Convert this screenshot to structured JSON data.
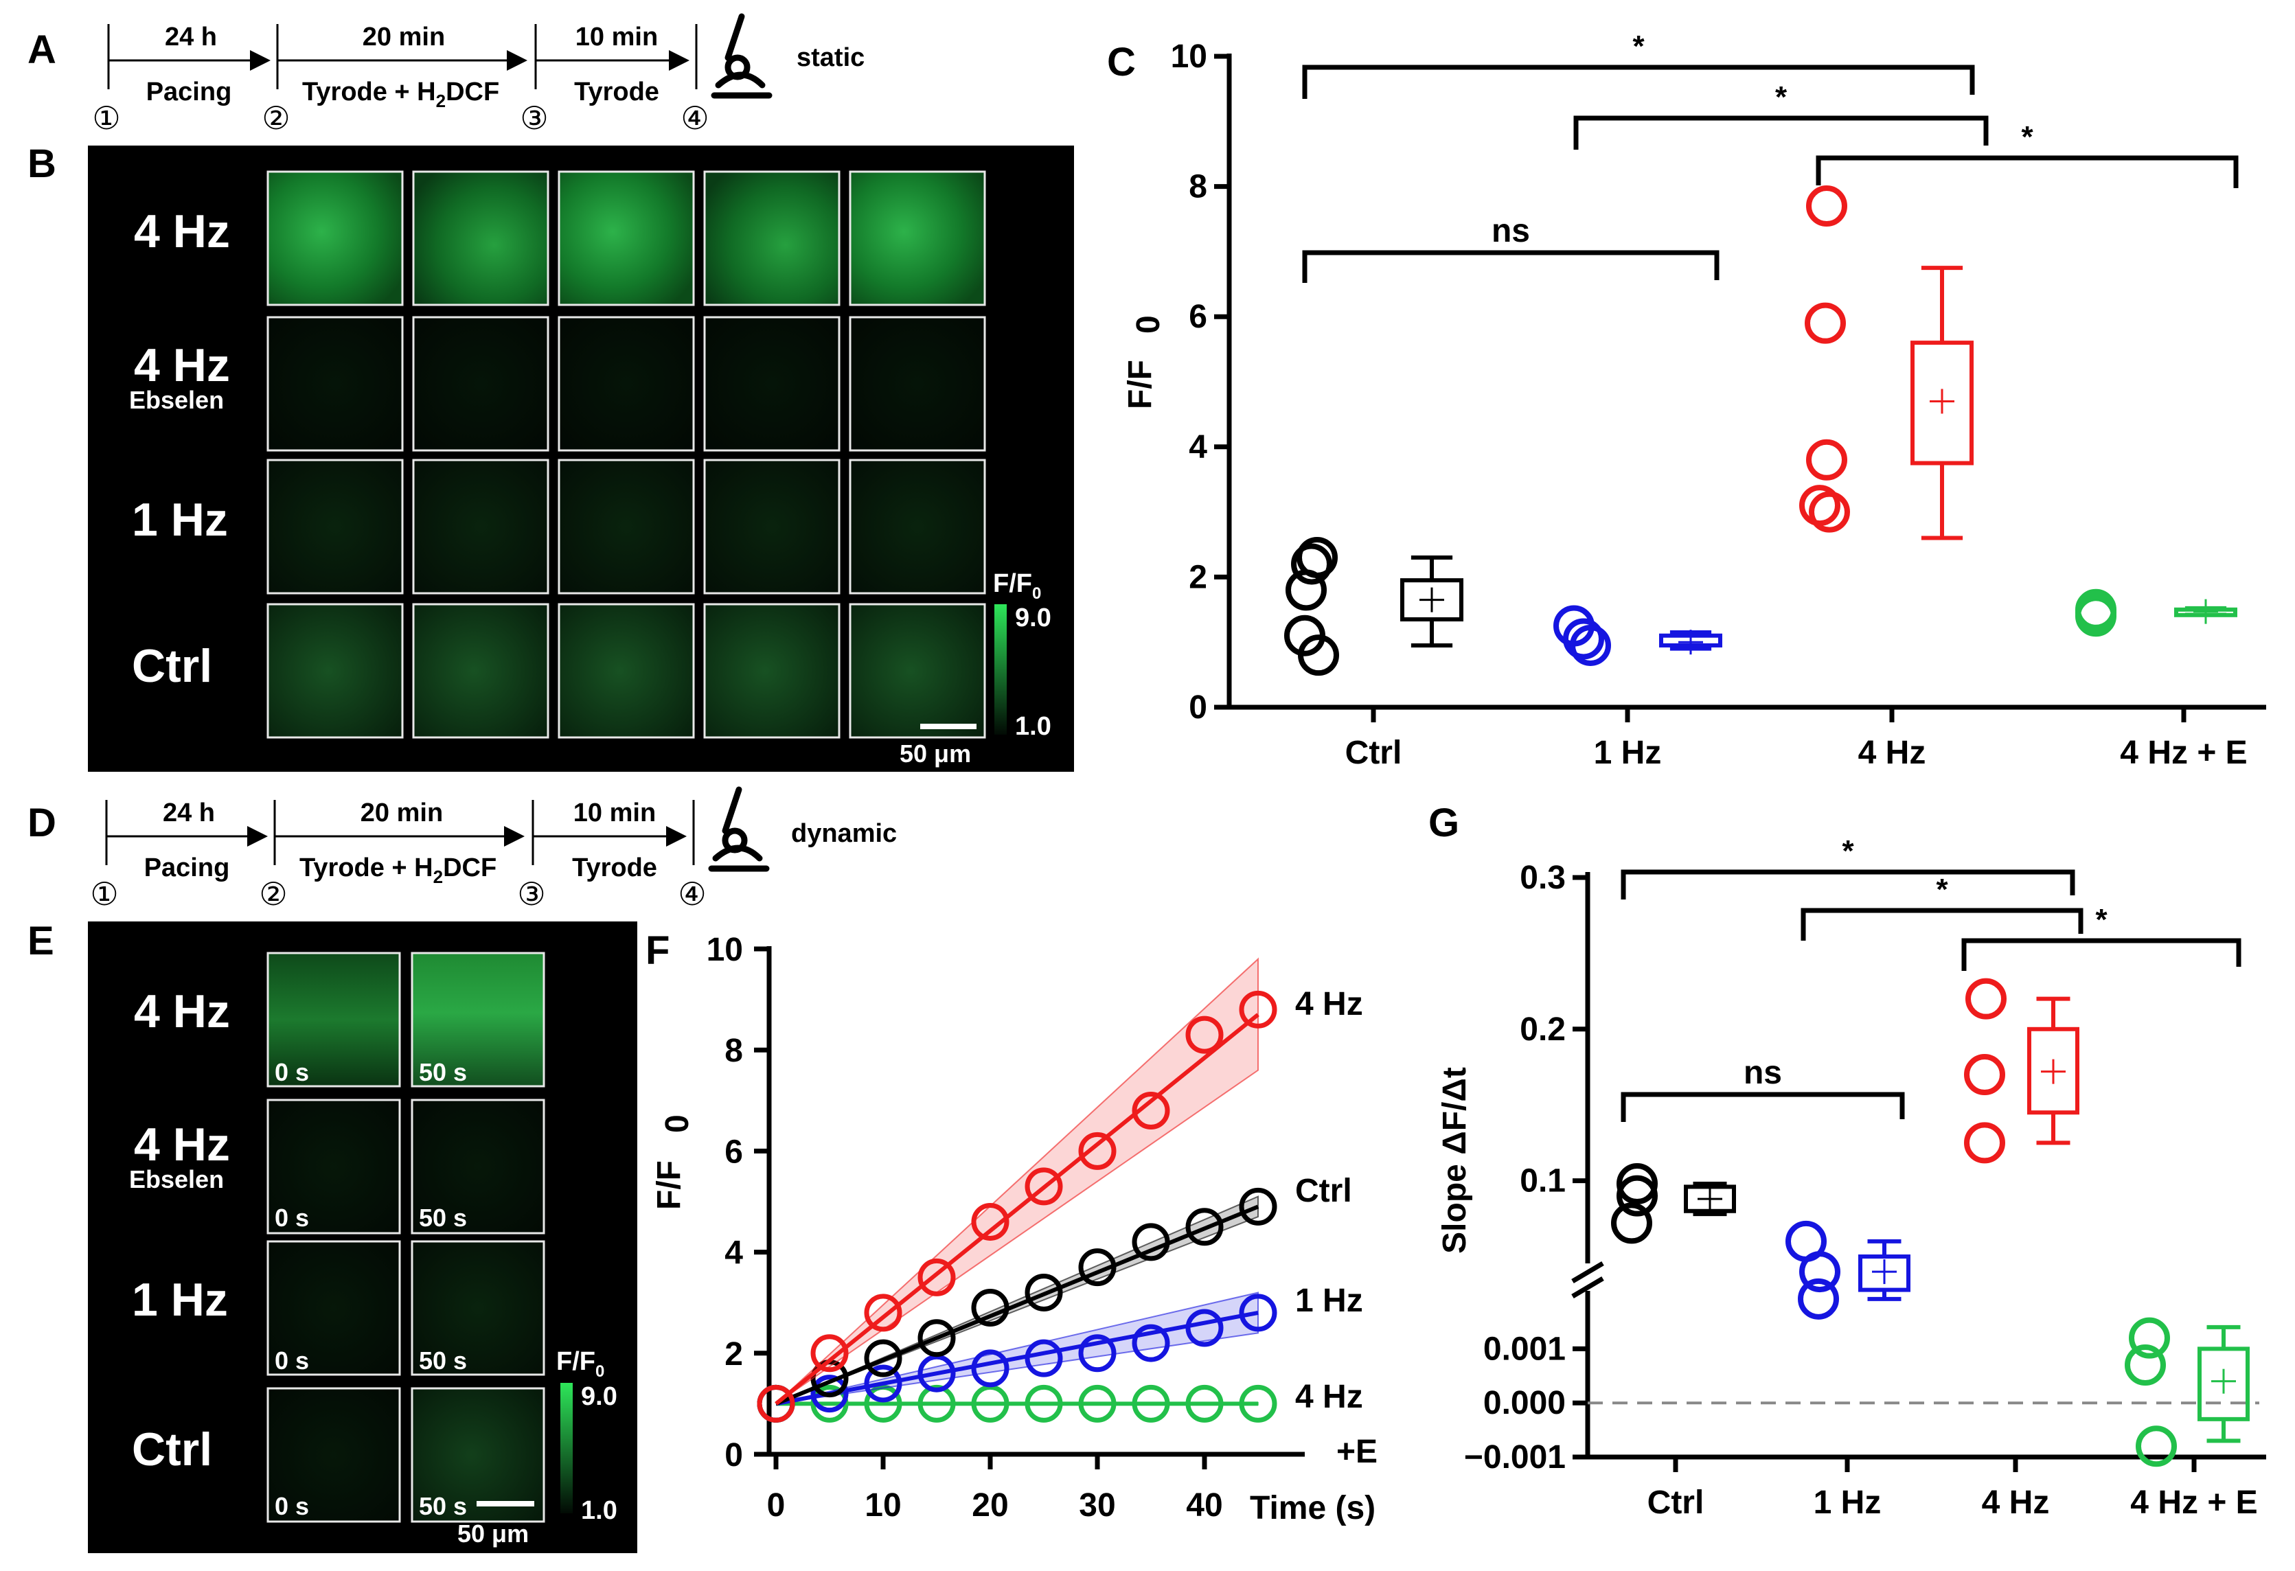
{
  "panels": {
    "a": "A",
    "b": "B",
    "c": "C",
    "d": "D",
    "e": "E",
    "f": "F",
    "g": "G"
  },
  "timeline_a": {
    "durations": [
      "24 h",
      "20 min",
      "10 min"
    ],
    "steps": [
      "Pacing",
      "Tyrode + H",
      "Tyrode"
    ],
    "h2dcf_sub": "2",
    "h2dcf_rest": "DCF",
    "nums": [
      "①",
      "②",
      "③",
      "④"
    ],
    "mode": "static"
  },
  "timeline_d": {
    "durations": [
      "24 h",
      "20 min",
      "10 min"
    ],
    "steps": [
      "Pacing",
      "Tyrode + H",
      "Tyrode"
    ],
    "h2dcf_sub": "2",
    "h2dcf_rest": "DCF",
    "nums": [
      "①",
      "②",
      "③",
      "④"
    ],
    "mode": "dynamic"
  },
  "image_b": {
    "rows": [
      "4 Hz",
      "4 Hz",
      "1 Hz",
      "Ctrl"
    ],
    "ebselen": "Ebselen",
    "cbar": {
      "label": "F/F",
      "sub": "0",
      "max": "9.0",
      "min": "1.0"
    },
    "scalebar": "50 μm"
  },
  "image_e": {
    "rows": [
      "4 Hz",
      "4 Hz",
      "1 Hz",
      "Ctrl"
    ],
    "ebselen": "Ebselen",
    "t0": "0 s",
    "t50": "50 s",
    "cbar": {
      "label": "F/F",
      "sub": "0",
      "max": "9.0",
      "min": "1.0"
    },
    "scalebar": "50 μm"
  },
  "colors": {
    "ctrl": "#000000",
    "hz1": "#1515e0",
    "hz4": "#ee1c1c",
    "hz4e": "#22c04a"
  },
  "chart_data": [
    {
      "id": "C",
      "type": "scatter+box",
      "ylabel": "F/F",
      "ylabel_sub": "0",
      "ylim": [
        0,
        10
      ],
      "yticks": [
        "0",
        "2",
        "4",
        "6",
        "8",
        "10"
      ],
      "categories": [
        "Ctrl",
        "1 Hz",
        "4 Hz",
        "4 Hz + E"
      ],
      "points": [
        [
          2.3,
          2.2,
          1.8,
          1.1,
          0.8
        ],
        [
          1.25,
          1.05,
          0.95
        ],
        [
          7.7,
          5.9,
          3.8,
          3.1,
          3.0
        ],
        [
          1.5,
          1.45,
          1.4
        ]
      ],
      "box": [
        {
          "min": 0.95,
          "q1": 1.35,
          "q3": 1.95,
          "max": 2.3,
          "mean": 1.65
        },
        {
          "min": 0.9,
          "q1": 0.95,
          "q3": 1.1,
          "max": 1.15,
          "mean": 1.0
        },
        {
          "min": 2.6,
          "q1": 3.75,
          "q3": 5.6,
          "max": 6.75,
          "mean": 4.7
        },
        {
          "min": 1.42,
          "q1": 1.44,
          "q3": 1.5,
          "max": 1.52,
          "mean": 1.47
        }
      ],
      "comparisons": [
        {
          "from": "Ctrl",
          "to": "4 Hz",
          "label": "*"
        },
        {
          "from": "1 Hz",
          "to": "4 Hz",
          "label": "*"
        },
        {
          "from": "4 Hz",
          "to": "4 Hz + E",
          "label": "*"
        },
        {
          "from": "Ctrl",
          "to": "1 Hz",
          "label": "ns"
        }
      ]
    },
    {
      "id": "F",
      "type": "line",
      "xlabel": "Time (s)",
      "ylabel": "F/F",
      "ylabel_sub": "0",
      "xlim": [
        0,
        45
      ],
      "ylim": [
        0,
        10
      ],
      "xticks": [
        "0",
        "10",
        "20",
        "30",
        "40"
      ],
      "yticks": [
        "0",
        "2",
        "4",
        "6",
        "8",
        "10"
      ],
      "x": [
        0,
        5,
        10,
        15,
        20,
        25,
        30,
        35,
        40,
        45
      ],
      "series": [
        {
          "name": "4 Hz",
          "labels": [
            "4 Hz"
          ],
          "values": [
            1.0,
            2.0,
            2.8,
            3.5,
            4.6,
            5.3,
            6.0,
            6.8,
            8.3,
            8.8
          ],
          "fit_end": 8.7,
          "band_end": [
            7.6,
            9.8
          ]
        },
        {
          "name": "Ctrl",
          "labels": [
            "Ctrl"
          ],
          "values": [
            1.0,
            1.5,
            1.9,
            2.3,
            2.9,
            3.2,
            3.7,
            4.2,
            4.5,
            4.9
          ],
          "fit_end": 4.9,
          "band_end": [
            4.7,
            5.1
          ]
        },
        {
          "name": "1 Hz",
          "labels": [
            "1 Hz"
          ],
          "values": [
            1.0,
            1.2,
            1.4,
            1.6,
            1.7,
            1.9,
            2.0,
            2.2,
            2.5,
            2.8
          ],
          "fit_end": 2.8,
          "band_end": [
            2.4,
            3.2
          ]
        },
        {
          "name": "4 Hz +E",
          "labels": [
            "4 Hz",
            "+E"
          ],
          "values": [
            1.0,
            1.0,
            1.0,
            1.0,
            1.0,
            1.0,
            1.0,
            1.0,
            1.0,
            1.0
          ],
          "fit_end": 1.0,
          "band_end": [
            0.98,
            1.02
          ]
        }
      ]
    },
    {
      "id": "G",
      "type": "scatter+box",
      "ylabel": "Slope ΔF/Δt",
      "axis_break": true,
      "upper_ylim": [
        0.05,
        0.3
      ],
      "lower_ylim": [
        -0.001,
        0.0015
      ],
      "upper_yticks": [
        "0.1",
        "0.2",
        "0.3"
      ],
      "lower_yticks": [
        "0.001",
        "0.000",
        "−0.001"
      ],
      "categories": [
        "Ctrl",
        "1 Hz",
        "4 Hz",
        "4 Hz + E"
      ],
      "points": [
        [
          0.098,
          0.09,
          0.072
        ],
        [
          0.06,
          0.04,
          0.022
        ],
        [
          0.22,
          0.17,
          0.125
        ],
        [
          0.0012,
          0.0007,
          -0.0008
        ]
      ],
      "box": [
        {
          "min": 0.078,
          "q1": 0.08,
          "q3": 0.096,
          "max": 0.098,
          "mean": 0.088
        },
        {
          "min": 0.022,
          "q1": 0.028,
          "q3": 0.05,
          "max": 0.06,
          "mean": 0.04
        },
        {
          "min": 0.125,
          "q1": 0.145,
          "q3": 0.2,
          "max": 0.22,
          "mean": 0.172
        },
        {
          "min": -0.0007,
          "q1": -0.0003,
          "q3": 0.001,
          "max": 0.0014,
          "mean": 0.0004
        }
      ],
      "comparisons": [
        {
          "from": "Ctrl",
          "to": "4 Hz",
          "label": "*"
        },
        {
          "from": "1 Hz",
          "to": "4 Hz",
          "label": "*"
        },
        {
          "from": "4 Hz",
          "to": "4 Hz + E",
          "label": "*"
        },
        {
          "from": "Ctrl",
          "to": "1 Hz",
          "label": "ns"
        }
      ]
    }
  ]
}
